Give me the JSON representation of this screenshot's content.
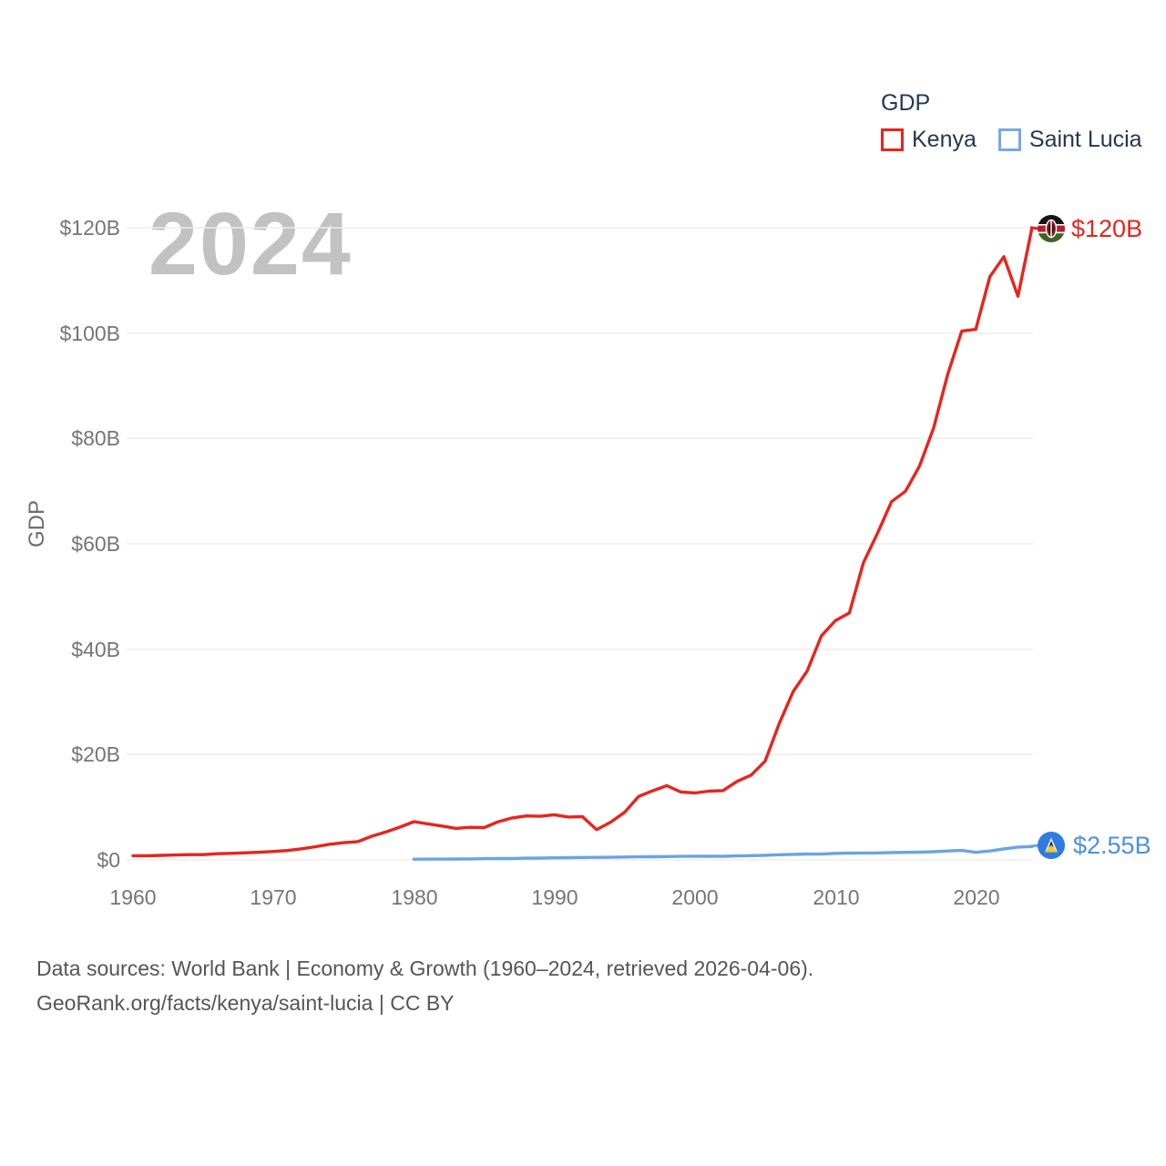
{
  "watermark": "2024",
  "legend": {
    "title": "GDP",
    "items": [
      {
        "label": "Kenya",
        "color": "#e8241c"
      },
      {
        "label": "Saint Lucia",
        "color": "#74aae2"
      }
    ]
  },
  "y_axis": {
    "title": "GDP",
    "tick_labels": [
      "$120B",
      "$100B",
      "$80B",
      "$60B",
      "$40B",
      "$20B",
      "$0"
    ]
  },
  "x_axis": {
    "tick_labels": [
      "1960",
      "1970",
      "1980",
      "1990",
      "2000",
      "2010",
      "2020"
    ]
  },
  "end_labels": {
    "kenya": "$120B",
    "saint_lucia": "$2.55B"
  },
  "footer": {
    "line1": "Data sources: World Bank | Economy & Growth (1960–2024, retrieved 2026-04-06).",
    "line2": "GeoRank.org/facts/kenya/saint-lucia | CC BY"
  },
  "chart_data": {
    "type": "line",
    "title": "GDP",
    "ylabel": "GDP",
    "xlabel": "",
    "x_range": [
      1960,
      2024
    ],
    "x_ticks": [
      1960,
      1970,
      1980,
      1990,
      2000,
      2010,
      2020
    ],
    "y_range_billions_usd": [
      0,
      120
    ],
    "y_ticks_billions": [
      0,
      20,
      40,
      60,
      80,
      100,
      120
    ],
    "grid": "horizontal-only",
    "legend_position": "top-right",
    "watermark_year": "2024",
    "series": [
      {
        "name": "Kenya",
        "color": "#e8241c",
        "end_label": "$120B",
        "end_value_billions": 120,
        "years": [
          1960,
          1961,
          1962,
          1963,
          1964,
          1965,
          1966,
          1967,
          1968,
          1969,
          1970,
          1971,
          1972,
          1973,
          1974,
          1975,
          1976,
          1977,
          1978,
          1979,
          1980,
          1981,
          1982,
          1983,
          1984,
          1985,
          1986,
          1987,
          1988,
          1989,
          1990,
          1991,
          1992,
          1993,
          1994,
          1995,
          1996,
          1997,
          1998,
          1999,
          2000,
          2001,
          2002,
          2003,
          2004,
          2005,
          2006,
          2007,
          2008,
          2009,
          2010,
          2011,
          2012,
          2013,
          2014,
          2015,
          2016,
          2017,
          2018,
          2019,
          2020,
          2021,
          2022,
          2023,
          2024
        ],
        "values_billions": [
          0.79,
          0.79,
          0.87,
          0.93,
          1.0,
          1.0,
          1.17,
          1.25,
          1.35,
          1.46,
          1.6,
          1.78,
          2.11,
          2.5,
          2.97,
          3.26,
          3.47,
          4.49,
          5.3,
          6.23,
          7.27,
          6.85,
          6.43,
          5.98,
          6.19,
          6.13,
          7.24,
          7.97,
          8.36,
          8.28,
          8.57,
          8.15,
          8.21,
          5.75,
          7.15,
          9.05,
          12.05,
          13.12,
          14.09,
          12.9,
          12.71,
          13.06,
          13.15,
          14.9,
          16.1,
          18.74,
          25.83,
          31.96,
          35.9,
          42.5,
          45.41,
          46.87,
          56.4,
          62.0,
          68.0,
          70.0,
          74.8,
          82.0,
          92.2,
          100.4,
          100.7,
          110.7,
          114.5,
          107.0,
          120.0
        ]
      },
      {
        "name": "Saint Lucia",
        "color": "#6aa4e4",
        "end_label": "$2.55B",
        "end_value_billions": 2.55,
        "years": [
          1980,
          1981,
          1982,
          1983,
          1984,
          1985,
          1986,
          1987,
          1988,
          1989,
          1990,
          1991,
          1992,
          1993,
          1994,
          1995,
          1996,
          1997,
          1998,
          1999,
          2000,
          2001,
          2002,
          2003,
          2004,
          2005,
          2006,
          2007,
          2008,
          2009,
          2010,
          2011,
          2012,
          2013,
          2014,
          2015,
          2016,
          2017,
          2018,
          2019,
          2020,
          2021,
          2022,
          2023,
          2024
        ],
        "values_billions": [
          0.13,
          0.15,
          0.16,
          0.17,
          0.19,
          0.24,
          0.26,
          0.28,
          0.32,
          0.35,
          0.4,
          0.43,
          0.47,
          0.49,
          0.51,
          0.55,
          0.58,
          0.6,
          0.64,
          0.68,
          0.71,
          0.7,
          0.7,
          0.76,
          0.81,
          0.89,
          0.98,
          1.06,
          1.13,
          1.1,
          1.24,
          1.29,
          1.31,
          1.33,
          1.4,
          1.44,
          1.47,
          1.55,
          1.69,
          1.8,
          1.43,
          1.7,
          2.1,
          2.43,
          2.55
        ]
      }
    ]
  }
}
